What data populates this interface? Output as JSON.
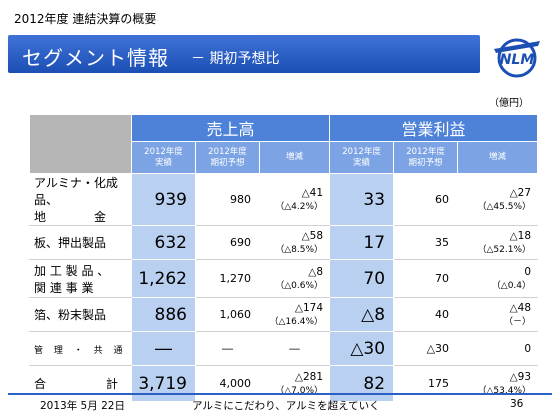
{
  "slide": {
    "top_label": "2012年度  連結決算の概要",
    "title": "セグメント情報",
    "subtitle": "－ 期初予想比",
    "logo_text": "NLM",
    "unit": "（億円）"
  },
  "table": {
    "group_headers": [
      "売上高",
      "営業利益"
    ],
    "sub_headers": {
      "actual": [
        "2012年度",
        "実績"
      ],
      "forecast": [
        "2012年度",
        "期初予想"
      ],
      "change": "増減"
    },
    "rows": [
      {
        "label1": "アルミナ・化成品、",
        "label2": "地　　　　金",
        "sales": "939",
        "sales_fc": "980",
        "sales_chg": "△41",
        "sales_pct": "（△4.2%）",
        "op": "33",
        "op_fc": "60",
        "op_chg": "△27",
        "op_pct": "（△45.5%）"
      },
      {
        "label1": "板、押出製品",
        "label2": "",
        "sales": "632",
        "sales_fc": "690",
        "sales_chg": "△58",
        "sales_pct": "（△8.5%）",
        "op": "17",
        "op_fc": "35",
        "op_chg": "△18",
        "op_pct": "（△52.1%）"
      },
      {
        "label1": "加 工 製 品 、",
        "label2": "関 連 事 業",
        "sales": "1,262",
        "sales_fc": "1,270",
        "sales_chg": "△8",
        "sales_pct": "（△0.6%）",
        "op": "70",
        "op_fc": "70",
        "op_chg": "0",
        "op_pct": "（△0.4）"
      },
      {
        "label1": "箔、粉末製品",
        "label2": "",
        "sales": "886",
        "sales_fc": "1,060",
        "sales_chg": "△174",
        "sales_pct": "（△16.4%）",
        "op": "△8",
        "op_fc": "40",
        "op_chg": "△48",
        "op_pct": "（－）"
      },
      {
        "label1": "管 理 ・ 共 通",
        "label2": "",
        "sales": "―",
        "sales_fc": "―",
        "sales_chg": "―",
        "sales_pct": "",
        "op": "△30",
        "op_fc": "△30",
        "op_chg": "0",
        "op_pct": ""
      },
      {
        "label1": "合　　　　　計",
        "label2": "",
        "sales": "3,719",
        "sales_fc": "4,000",
        "sales_chg": "△281",
        "sales_pct": "（△7.0%）",
        "op": "82",
        "op_fc": "175",
        "op_chg": "△93",
        "op_pct": "（△53.4%）"
      }
    ]
  },
  "footer": {
    "date": "2013年 5月 22日",
    "tagline": "アルミにこだわり、アルミを超えていく",
    "page": "36"
  },
  "colors": {
    "title_bar": "#2b5fc6",
    "group_header": "#4e82d8",
    "sub_header": "#7ca3e3",
    "highlight_cell": "#b9d0f1",
    "corner": "#b6b6b6"
  }
}
